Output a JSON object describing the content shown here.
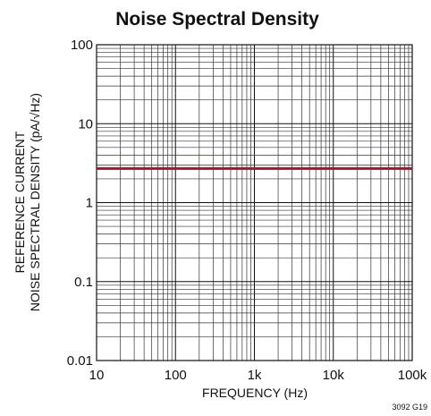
{
  "chart_data": {
    "type": "line",
    "title": "Noise Spectral Density",
    "xlabel": "FREQUENCY (Hz)",
    "ylabel_line1": "REFERENCE CURRENT",
    "ylabel_line2": "NOISE SPECTRAL DENSITY (pA/√Hz)",
    "x_scale": "log",
    "y_scale": "log",
    "xlim": [
      10,
      100000
    ],
    "ylim": [
      0.01,
      100
    ],
    "x_ticks": [
      {
        "value": 10,
        "label": "10"
      },
      {
        "value": 100,
        "label": "100"
      },
      {
        "value": 1000,
        "label": "1k"
      },
      {
        "value": 10000,
        "label": "10k"
      },
      {
        "value": 100000,
        "label": "100k"
      }
    ],
    "y_ticks": [
      {
        "value": 100,
        "label": "100"
      },
      {
        "value": 10,
        "label": "10"
      },
      {
        "value": 1,
        "label": "1"
      },
      {
        "value": 0.1,
        "label": "0.1"
      },
      {
        "value": 0.01,
        "label": "0.01"
      }
    ],
    "grid": true,
    "series": [
      {
        "x": [
          10,
          100000
        ],
        "y": [
          2.7,
          2.7
        ],
        "color": "#9b1c2e"
      }
    ],
    "figure_code": "3092 G19"
  }
}
